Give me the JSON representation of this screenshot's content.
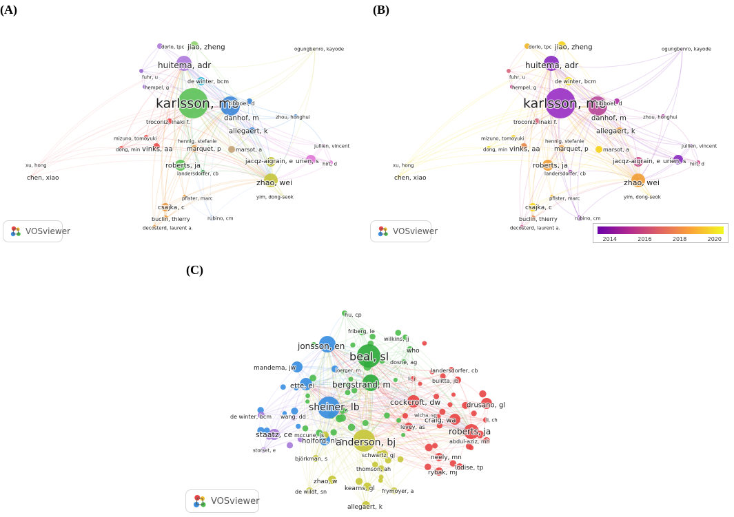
{
  "panels": [
    {
      "letter": "(A)",
      "badge": "VOSviewer",
      "nodes": [
        {
          "label": "karlsson, mo",
          "r": 22,
          "color": "#5ec25a",
          "size": 19
        },
        {
          "label": "huitema, adr",
          "r": 11,
          "color": "#b07ddb",
          "size": 12
        },
        {
          "label": "jiao, zheng",
          "r": 6,
          "color": "#8fd46f",
          "size": 10
        },
        {
          "label": "dorlo, tpc",
          "r": 4,
          "color": "#b07ddb",
          "size": 7
        },
        {
          "label": "ogungbenro, kayode",
          "r": 2,
          "color": "#d8d560",
          "size": 7
        },
        {
          "label": "fuhr, u",
          "r": 3,
          "color": "#9c6fd1",
          "size": 7
        },
        {
          "label": "hempel, g",
          "r": 3,
          "color": "#9c6fd1",
          "size": 7
        },
        {
          "label": "de winter, bcm",
          "r": 6,
          "color": "#38b9d6",
          "size": 8
        },
        {
          "label": "tibboel, d",
          "r": 4,
          "color": "#3f88d8",
          "size": 8
        },
        {
          "label": "danhof, m",
          "r": 14,
          "color": "#3f88d8",
          "size": 10
        },
        {
          "label": "zhou, honghui",
          "r": 3,
          "color": "#3f88d8",
          "size": 7
        },
        {
          "label": "troconiz, inaki f.",
          "r": 4,
          "color": "#e84d4d",
          "size": 8
        },
        {
          "label": "allegaert, k",
          "r": 5,
          "color": "#3f88d8",
          "size": 10
        },
        {
          "label": "mizuno, tomoyuki",
          "r": 3,
          "color": "#e84d4d",
          "size": 7
        },
        {
          "label": "hennig, stefanie",
          "r": 3,
          "color": "#5ec25a",
          "size": 7
        },
        {
          "label": "jullien, vincent",
          "r": 2,
          "color": "#e07ad8",
          "size": 7
        },
        {
          "label": "vinks, aa",
          "r": 5,
          "color": "#e84d4d",
          "size": 10
        },
        {
          "label": "dong, min",
          "r": 3,
          "color": "#e84d4d",
          "size": 7
        },
        {
          "label": "marquet, p",
          "r": 5,
          "color": "#e8963a",
          "size": 9
        },
        {
          "label": "marsot, a",
          "r": 5,
          "color": "#c4a47a",
          "size": 8
        },
        {
          "label": "urien, s",
          "r": 7,
          "color": "#e07ad8",
          "size": 9
        },
        {
          "label": "hirt, d",
          "r": 3,
          "color": "#e07ad8",
          "size": 7
        },
        {
          "label": "xu, hong",
          "r": 2,
          "color": "#f3a7a7",
          "size": 7
        },
        {
          "label": "roberts, ja",
          "r": 8,
          "color": "#5ec25a",
          "size": 10
        },
        {
          "label": "jacqz-aigrain, e",
          "r": 7,
          "color": "#c7c740",
          "size": 9
        },
        {
          "label": "chen, xiao",
          "r": 3,
          "color": "#f3a7a7",
          "size": 9
        },
        {
          "label": "landersdorfer, cb",
          "r": 4,
          "color": "#2d9b47",
          "size": 7
        },
        {
          "label": "zhao, wei",
          "r": 10,
          "color": "#c7c740",
          "size": 11
        },
        {
          "label": "pfister, marc",
          "r": 3,
          "color": "#e8963a",
          "size": 7
        },
        {
          "label": "yim, dong-seok",
          "r": 2,
          "color": "#c7c740",
          "size": 7
        },
        {
          "label": "csajka, c",
          "r": 6,
          "color": "#e8963a",
          "size": 9
        },
        {
          "label": "buclin, thierry",
          "r": 4,
          "color": "#e8963a",
          "size": 8
        },
        {
          "label": "rubino, cm",
          "r": 4,
          "color": "#a9c0ef",
          "size": 7
        },
        {
          "label": "decosterd, laurent a.",
          "r": 3,
          "color": "#e8963a",
          "size": 7
        }
      ]
    },
    {
      "letter": "(B)",
      "badge": "VOSviewer",
      "colorbar": {
        "ticks": [
          "2014",
          "2016",
          "2018",
          "2020"
        ],
        "tick_values": [
          2014,
          2016,
          2018,
          2020
        ],
        "range": [
          2013.3,
          2020.6
        ],
        "stops": [
          "#6a00a8",
          "#b12a90",
          "#e16462",
          "#fca636",
          "#f0f921"
        ]
      },
      "nodes": [
        {
          "label": "karlsson, mo",
          "r": 22,
          "color": "#9a32c6",
          "size": 19
        },
        {
          "label": "huitema, adr",
          "r": 11,
          "color": "#8a2cc0",
          "size": 12
        },
        {
          "label": "jiao, zheng",
          "r": 6,
          "color": "#f5d21c",
          "size": 10
        },
        {
          "label": "dorlo, tpc",
          "r": 4,
          "color": "#f0b92b",
          "size": 7
        },
        {
          "label": "ogungbenro, kayode",
          "r": 2,
          "color": "#8a2cc0",
          "size": 7
        },
        {
          "label": "fuhr, u",
          "r": 3,
          "color": "#d76a80",
          "size": 7
        },
        {
          "label": "hempel, g",
          "r": 3,
          "color": "#c94c8c",
          "size": 7
        },
        {
          "label": "de winter, bcm",
          "r": 6,
          "color": "#f0e02a",
          "size": 8
        },
        {
          "label": "tibboel, d",
          "r": 4,
          "color": "#b235a4",
          "size": 8
        },
        {
          "label": "danhof, m",
          "r": 14,
          "color": "#b94a9a",
          "size": 10
        },
        {
          "label": "zhou, honghui",
          "r": 3,
          "color": "#b235a4",
          "size": 7
        },
        {
          "label": "troconiz, inaki f.",
          "r": 4,
          "color": "#d76a80",
          "size": 8
        },
        {
          "label": "allegaert, k",
          "r": 5,
          "color": "#f0a03a",
          "size": 10
        },
        {
          "label": "mizuno, tomoyuki",
          "r": 3,
          "color": "#f5d21c",
          "size": 7
        },
        {
          "label": "hennig, stefanie",
          "r": 3,
          "color": "#e47b6e",
          "size": 7
        },
        {
          "label": "jullien, vincent",
          "r": 2,
          "color": "#8a2cc0",
          "size": 7
        },
        {
          "label": "vinks, aa",
          "r": 5,
          "color": "#e6894f",
          "size": 10
        },
        {
          "label": "dong, min",
          "r": 3,
          "color": "#f0e02a",
          "size": 7
        },
        {
          "label": "marquet, p",
          "r": 5,
          "color": "#f0a03a",
          "size": 9
        },
        {
          "label": "marsot, a",
          "r": 5,
          "color": "#f5d21c",
          "size": 8
        },
        {
          "label": "urien, s",
          "r": 7,
          "color": "#8a2cc0",
          "size": 9
        },
        {
          "label": "hirt, d",
          "r": 3,
          "color": "#c94c8c",
          "size": 7
        },
        {
          "label": "xu, hong",
          "r": 2,
          "color": "#f0e02a",
          "size": 7
        },
        {
          "label": "roberts, ja",
          "r": 8,
          "color": "#f0a03a",
          "size": 10
        },
        {
          "label": "jacqz-aigrain, e",
          "r": 7,
          "color": "#c94c8c",
          "size": 9
        },
        {
          "label": "chen, xiao",
          "r": 3,
          "color": "#f5e01c",
          "size": 9
        },
        {
          "label": "landersdorfer, cb",
          "r": 4,
          "color": "#a534b0",
          "size": 7
        },
        {
          "label": "zhao, wei",
          "r": 10,
          "color": "#f0a03a",
          "size": 11
        },
        {
          "label": "pfister, marc",
          "r": 3,
          "color": "#f0b92b",
          "size": 7
        },
        {
          "label": "yim, dong-seok",
          "r": 2,
          "color": "#f5d21c",
          "size": 7
        },
        {
          "label": "csajka, c",
          "r": 6,
          "color": "#f5d21c",
          "size": 9
        },
        {
          "label": "buclin, thierry",
          "r": 4,
          "color": "#e6894f",
          "size": 8
        },
        {
          "label": "rubino, cm",
          "r": 4,
          "color": "#8a2cc0",
          "size": 7
        },
        {
          "label": "decosterd, laurent a.",
          "r": 3,
          "color": "#c94c8c",
          "size": 7
        }
      ]
    },
    {
      "letter": "(C)",
      "badge": "VOSviewer",
      "nodes": [
        {
          "label": "hu, cp",
          "r": 4,
          "color": "#4cbb4c",
          "size": 8
        },
        {
          "label": "friberg, le",
          "r": 5,
          "color": "#4cbb4c",
          "size": 8
        },
        {
          "label": "wilkins, jj",
          "r": 4,
          "color": "#4cbb4c",
          "size": 8
        },
        {
          "label": "jonsson, en",
          "r": 12,
          "color": "#3a8ee0",
          "size": 12
        },
        {
          "label": "beal, sl",
          "r": 17,
          "color": "#2faa3c",
          "size": 16
        },
        {
          "label": "who",
          "r": 5,
          "color": "#4cbb4c",
          "size": 9
        },
        {
          "label": "dosne, ag",
          "r": 4,
          "color": "#4cbb4c",
          "size": 8
        },
        {
          "label": "mandema, jw",
          "r": 8,
          "color": "#3a8ee0",
          "size": 9
        },
        {
          "label": "joerger, m",
          "r": 5,
          "color": "#3a8ee0",
          "size": 7
        },
        {
          "label": "landersdorfer, cb",
          "r": 4,
          "color": "#e84545",
          "size": 8
        },
        {
          "label": "ette, ei",
          "r": 9,
          "color": "#3a8ee0",
          "size": 10
        },
        {
          "label": "bergstrand, m",
          "r": 12,
          "color": "#2faa3c",
          "size": 12
        },
        {
          "label": "li, j",
          "r": 4,
          "color": "#e84545",
          "size": 7
        },
        {
          "label": "bulitta, jb",
          "r": 5,
          "color": "#e84545",
          "size": 8
        },
        {
          "label": "cockcroft, dw",
          "r": 9,
          "color": "#e84545",
          "size": 11
        },
        {
          "label": "drusano, gl",
          "r": 8,
          "color": "#e84545",
          "size": 10
        },
        {
          "label": "sheiner, lb",
          "r": 16,
          "color": "#3a8ee0",
          "size": 14
        },
        {
          "label": "de winter, bcm",
          "r": 5,
          "color": "#a679d9",
          "size": 8
        },
        {
          "label": "wang, dd",
          "r": 4,
          "color": "#a679d9",
          "size": 8
        },
        {
          "label": "wicha, sg",
          "r": 4,
          "color": "#e84545",
          "size": 7
        },
        {
          "label": "craig, wa",
          "r": 8,
          "color": "#e84545",
          "size": 10
        },
        {
          "label": "li, ch",
          "r": 4,
          "color": "#e84545",
          "size": 7
        },
        {
          "label": "holford, nhg",
          "r": 8,
          "color": "#3a8ee0",
          "size": 10
        },
        {
          "label": "levey, as",
          "r": 6,
          "color": "#e84545",
          "size": 8
        },
        {
          "label": "roberts, ja",
          "r": 11,
          "color": "#e84545",
          "size": 12
        },
        {
          "label": "abdul-aziz, mh",
          "r": 5,
          "color": "#e84545",
          "size": 8
        },
        {
          "label": "staatz, ce",
          "r": 8,
          "color": "#a679d9",
          "size": 11
        },
        {
          "label": "mccune, js",
          "r": 5,
          "color": "#c7c739",
          "size": 8
        },
        {
          "label": "anderson, bj",
          "r": 16,
          "color": "#c7c739",
          "size": 14
        },
        {
          "label": "storset, e",
          "r": 4,
          "color": "#a679d9",
          "size": 7
        },
        {
          "label": "schwartz, gj",
          "r": 6,
          "color": "#c7c739",
          "size": 8
        },
        {
          "label": "neely, mn",
          "r": 6,
          "color": "#e84545",
          "size": 9
        },
        {
          "label": "lodise, tp",
          "r": 5,
          "color": "#e84545",
          "size": 9
        },
        {
          "label": "björkman, s",
          "r": 5,
          "color": "#c7c739",
          "size": 8
        },
        {
          "label": "thomson, ah",
          "r": 5,
          "color": "#c7c739",
          "size": 8
        },
        {
          "label": "rybak, mj",
          "r": 6,
          "color": "#e84545",
          "size": 9
        },
        {
          "label": "zhao, w",
          "r": 6,
          "color": "#c7c739",
          "size": 9
        },
        {
          "label": "kearns, gl",
          "r": 6,
          "color": "#c7c739",
          "size": 9
        },
        {
          "label": "frymoyer, a",
          "r": 5,
          "color": "#c7c739",
          "size": 8
        },
        {
          "label": "de wildt, sn",
          "r": 5,
          "color": "#c7c739",
          "size": 8
        },
        {
          "label": "allegaert, k",
          "r": 6,
          "color": "#c7c739",
          "size": 9
        }
      ]
    }
  ]
}
